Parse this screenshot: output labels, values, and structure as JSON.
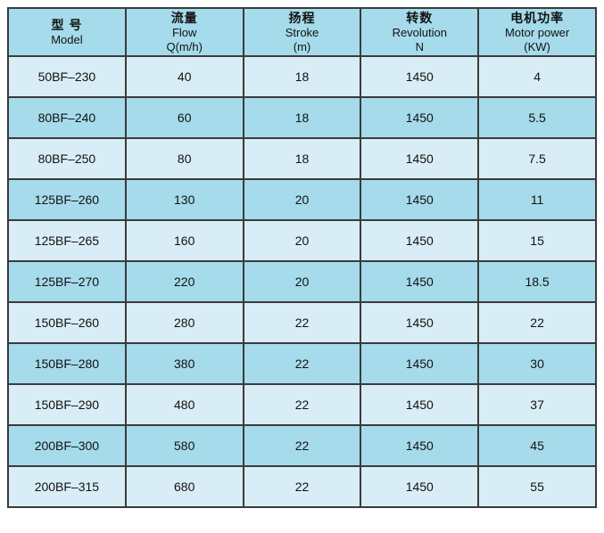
{
  "colors": {
    "header_bg": "#a5dbea",
    "row_light_bg": "#d9edf6",
    "row_dark_bg": "#a5dbea",
    "border": "#3b3b3b",
    "text": "#121212",
    "page_bg": "#ffffff"
  },
  "table": {
    "columns": [
      {
        "zh": "型 号",
        "en": "Model",
        "sub": ""
      },
      {
        "zh": "流量",
        "en": "Flow",
        "sub": "Q(m/h)"
      },
      {
        "zh": "扬程",
        "en": "Stroke",
        "sub": "(m)"
      },
      {
        "zh": "转数",
        "en": "Revolution",
        "sub": "N"
      },
      {
        "zh": "电机功率",
        "en": "Motor power",
        "sub": "(KW)"
      }
    ],
    "rows": [
      [
        "50BF–230",
        "40",
        "18",
        "1450",
        "4"
      ],
      [
        "80BF–240",
        "60",
        "18",
        "1450",
        "5.5"
      ],
      [
        "80BF–250",
        "80",
        "18",
        "1450",
        "7.5"
      ],
      [
        "125BF–260",
        "130",
        "20",
        "1450",
        "11"
      ],
      [
        "125BF–265",
        "160",
        "20",
        "1450",
        "15"
      ],
      [
        "125BF–270",
        "220",
        "20",
        "1450",
        "18.5"
      ],
      [
        "150BF–260",
        "280",
        "22",
        "1450",
        "22"
      ],
      [
        "150BF–280",
        "380",
        "22",
        "1450",
        "30"
      ],
      [
        "150BF–290",
        "480",
        "22",
        "1450",
        "37"
      ],
      [
        "200BF–300",
        "580",
        "22",
        "1450",
        "45"
      ],
      [
        "200BF–315",
        "680",
        "22",
        "1450",
        "55"
      ]
    ]
  },
  "chart_data": {
    "type": "table",
    "title": "Pump specification table",
    "columns": [
      "型 号 Model",
      "流量 Flow Q(m/h)",
      "扬程 Stroke (m)",
      "转数 Revolution N",
      "电机功率 Motor power (KW)"
    ],
    "rows": [
      [
        "50BF–230",
        40,
        18,
        1450,
        4
      ],
      [
        "80BF–240",
        60,
        18,
        1450,
        5.5
      ],
      [
        "80BF–250",
        80,
        18,
        1450,
        7.5
      ],
      [
        "125BF–260",
        130,
        20,
        1450,
        11
      ],
      [
        "125BF–265",
        160,
        20,
        1450,
        15
      ],
      [
        "125BF–270",
        220,
        20,
        1450,
        18.5
      ],
      [
        "150BF–260",
        280,
        22,
        1450,
        22
      ],
      [
        "150BF–280",
        380,
        22,
        1450,
        30
      ],
      [
        "150BF–290",
        480,
        22,
        1450,
        37
      ],
      [
        "200BF–300",
        580,
        22,
        1450,
        45
      ],
      [
        "200BF–315",
        680,
        22,
        1450,
        55
      ]
    ]
  }
}
